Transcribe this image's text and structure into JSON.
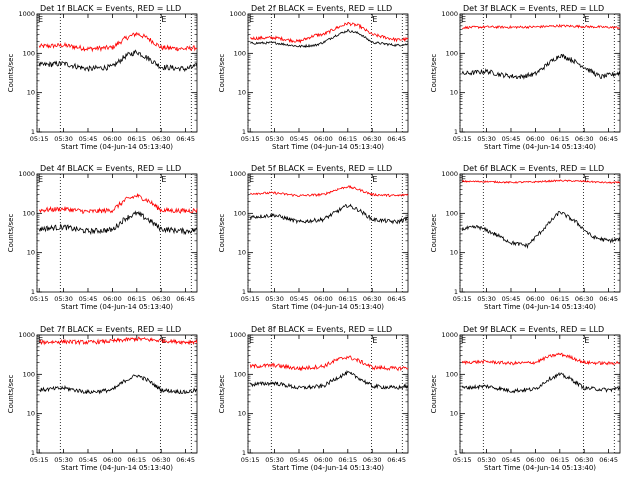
{
  "figure": {
    "xtick_labels": [
      "05:15",
      "05:30",
      "05:45",
      "06:00",
      "06:15",
      "06:30",
      "06:45"
    ],
    "ytick_labels": [
      "1",
      "10",
      "100",
      "1000"
    ],
    "xlabel": "Start Time (04-Jun-14 05:13:40)",
    "ylabel": "Counts/sec",
    "event_marker": "E",
    "colors": {
      "events": "#000000",
      "lld": "#ff0000",
      "axes": "#000000"
    }
  },
  "chart_data": [
    {
      "type": "line",
      "title": "Det 1f BLACK = Events, RED = LLD",
      "xlabel": "Start Time (04-Jun-14 05:13:40)",
      "ylabel": "Counts/sec",
      "ylim": [
        1,
        1000
      ],
      "yscale": "log",
      "xlim": [
        "05:13:40",
        "06:52:00"
      ],
      "event_lines": [
        "05:13:40",
        "05:28:00",
        "06:29:30",
        "06:48:30"
      ],
      "event_marks_at": [
        "05:13:40",
        "06:29:30"
      ],
      "series": [
        {
          "color": "#ff0000",
          "noise": 0.06,
          "x": [
            "05:15",
            "05:30",
            "05:45",
            "06:00",
            "06:08",
            "06:15",
            "06:22",
            "06:30",
            "06:45",
            "06:52"
          ],
          "y": [
            150,
            160,
            130,
            140,
            240,
            320,
            240,
            140,
            130,
            140
          ]
        },
        {
          "color": "#000000",
          "noise": 0.07,
          "x": [
            "05:15",
            "05:30",
            "05:45",
            "06:00",
            "06:08",
            "06:15",
            "06:22",
            "06:30",
            "06:45",
            "06:52"
          ],
          "y": [
            50,
            55,
            40,
            45,
            85,
            110,
            75,
            45,
            40,
            48
          ]
        }
      ]
    },
    {
      "type": "line",
      "title": "Det 2f BLACK = Events, RED = LLD",
      "xlabel": "Start Time (04-Jun-14 05:13:40)",
      "ylabel": "Counts/sec",
      "ylim": [
        1,
        1000
      ],
      "yscale": "log",
      "xlim": [
        "05:13:40",
        "06:52:00"
      ],
      "event_lines": [
        "05:13:40",
        "05:28:00",
        "06:29:30",
        "06:48:30"
      ],
      "event_marks_at": [
        "05:13:40",
        "06:29:30"
      ],
      "series": [
        {
          "color": "#ff0000",
          "noise": 0.04,
          "x": [
            "05:15",
            "05:30",
            "05:45",
            "05:55",
            "06:00",
            "06:08",
            "06:15",
            "06:22",
            "06:30",
            "06:45",
            "06:52"
          ],
          "y": [
            240,
            250,
            200,
            290,
            300,
            440,
            580,
            500,
            300,
            220,
            230
          ]
        },
        {
          "color": "#000000",
          "noise": 0.03,
          "x": [
            "05:15",
            "05:30",
            "05:45",
            "05:55",
            "06:00",
            "06:08",
            "06:15",
            "06:22",
            "06:30",
            "06:45",
            "06:52"
          ],
          "y": [
            180,
            185,
            150,
            160,
            190,
            290,
            380,
            320,
            190,
            160,
            170
          ]
        }
      ]
    },
    {
      "type": "line",
      "title": "Det 3f BLACK = Events, RED = LLD",
      "xlabel": "Start Time (04-Jun-14 05:13:40)",
      "ylabel": "Counts/sec",
      "ylim": [
        1,
        1000
      ],
      "yscale": "log",
      "xlim": [
        "05:13:40",
        "06:52:00"
      ],
      "event_lines": [
        "05:13:40",
        "05:28:00",
        "06:29:30",
        "06:48:30"
      ],
      "event_marks_at": [
        "05:13:40",
        "06:29:30"
      ],
      "series": [
        {
          "color": "#ff0000",
          "noise": 0.03,
          "x": [
            "05:15",
            "05:30",
            "05:45",
            "06:00",
            "06:15",
            "06:30",
            "06:45",
            "06:52"
          ],
          "y": [
            450,
            470,
            460,
            470,
            500,
            480,
            460,
            450
          ]
        },
        {
          "color": "#000000",
          "noise": 0.06,
          "x": [
            "05:15",
            "05:30",
            "05:40",
            "05:50",
            "06:00",
            "06:08",
            "06:15",
            "06:22",
            "06:30",
            "06:40",
            "06:52"
          ],
          "y": [
            30,
            35,
            28,
            25,
            30,
            55,
            90,
            70,
            45,
            25,
            32
          ]
        }
      ]
    },
    {
      "type": "line",
      "title": "Det 4f BLACK = Events, RED = LLD",
      "xlabel": "Start Time (04-Jun-14 05:13:40)",
      "ylabel": "Counts/sec",
      "ylim": [
        1,
        1000
      ],
      "yscale": "log",
      "xlim": [
        "05:13:40",
        "06:52:00"
      ],
      "event_lines": [
        "05:13:40",
        "05:28:00",
        "06:29:30",
        "06:48:30"
      ],
      "event_marks_at": [
        "05:13:40",
        "06:29:30"
      ],
      "series": [
        {
          "color": "#ff0000",
          "noise": 0.06,
          "x": [
            "05:15",
            "05:30",
            "05:45",
            "06:00",
            "06:08",
            "06:15",
            "06:22",
            "06:30",
            "06:45",
            "06:52"
          ],
          "y": [
            120,
            130,
            110,
            120,
            220,
            280,
            210,
            120,
            115,
            120
          ]
        },
        {
          "color": "#000000",
          "noise": 0.07,
          "x": [
            "05:15",
            "05:30",
            "05:45",
            "06:00",
            "06:08",
            "06:15",
            "06:22",
            "06:30",
            "06:45",
            "06:52"
          ],
          "y": [
            40,
            45,
            35,
            38,
            75,
            100,
            70,
            40,
            35,
            38
          ]
        }
      ]
    },
    {
      "type": "line",
      "title": "Det 5f BLACK = Events, RED = LLD",
      "xlabel": "Start Time (04-Jun-14 05:13:40)",
      "ylabel": "Counts/sec",
      "ylim": [
        1,
        1000
      ],
      "yscale": "log",
      "xlim": [
        "05:13:40",
        "06:52:00"
      ],
      "event_lines": [
        "05:13:40",
        "05:28:00",
        "06:29:30",
        "06:48:30"
      ],
      "event_marks_at": [
        "05:13:40",
        "06:29:30"
      ],
      "series": [
        {
          "color": "#ff0000",
          "noise": 0.03,
          "x": [
            "05:15",
            "05:30",
            "05:45",
            "06:00",
            "06:08",
            "06:15",
            "06:22",
            "06:30",
            "06:45",
            "06:52"
          ],
          "y": [
            320,
            330,
            280,
            300,
            400,
            480,
            400,
            300,
            280,
            300
          ]
        },
        {
          "color": "#000000",
          "noise": 0.05,
          "x": [
            "05:15",
            "05:30",
            "05:45",
            "06:00",
            "06:08",
            "06:15",
            "06:22",
            "06:30",
            "06:45",
            "06:52"
          ],
          "y": [
            80,
            90,
            60,
            70,
            110,
            160,
            120,
            70,
            60,
            75
          ]
        }
      ]
    },
    {
      "type": "line",
      "title": "Det 6f BLACK = Events, RED = LLD",
      "xlabel": "Start Time (04-Jun-14 05:13:40)",
      "ylabel": "Counts/sec",
      "ylim": [
        1,
        1000
      ],
      "yscale": "log",
      "xlim": [
        "05:13:40",
        "06:52:00"
      ],
      "event_lines": [
        "05:13:40",
        "05:28:00",
        "06:29:30",
        "06:48:30"
      ],
      "event_marks_at": [
        "05:13:40",
        "06:29:30"
      ],
      "series": [
        {
          "color": "#ff0000",
          "noise": 0.02,
          "x": [
            "05:15",
            "05:30",
            "05:45",
            "06:00",
            "06:15",
            "06:30",
            "06:45",
            "06:52"
          ],
          "y": [
            650,
            640,
            610,
            630,
            680,
            650,
            600,
            610
          ]
        },
        {
          "color": "#000000",
          "noise": 0.05,
          "x": [
            "05:15",
            "05:25",
            "05:35",
            "05:45",
            "05:55",
            "06:05",
            "06:15",
            "06:25",
            "06:35",
            "06:45",
            "06:52"
          ],
          "y": [
            40,
            45,
            30,
            18,
            15,
            40,
            110,
            60,
            25,
            20,
            22
          ]
        }
      ]
    },
    {
      "type": "line",
      "title": "Det 7f BLACK = Events, RED = LLD",
      "xlabel": "Start Time (04-Jun-14 05:13:40)",
      "ylabel": "Counts/sec",
      "ylim": [
        1,
        1000
      ],
      "yscale": "log",
      "xlim": [
        "05:13:40",
        "06:52:00"
      ],
      "event_lines": [
        "05:13:40",
        "05:28:00",
        "06:29:30",
        "06:48:30"
      ],
      "event_marks_at": [
        "05:13:40",
        "06:29:30"
      ],
      "series": [
        {
          "color": "#ff0000",
          "noise": 0.05,
          "x": [
            "05:15",
            "05:30",
            "05:45",
            "06:00",
            "06:15",
            "06:30",
            "06:45",
            "06:52"
          ],
          "y": [
            650,
            680,
            650,
            700,
            800,
            720,
            660,
            680
          ]
        },
        {
          "color": "#000000",
          "noise": 0.05,
          "x": [
            "05:15",
            "05:30",
            "05:45",
            "06:00",
            "06:08",
            "06:15",
            "06:22",
            "06:30",
            "06:45",
            "06:52"
          ],
          "y": [
            40,
            45,
            35,
            40,
            70,
            95,
            70,
            40,
            35,
            40
          ]
        }
      ]
    },
    {
      "type": "line",
      "title": "Det 8f BLACK = Events, RED = LLD",
      "xlabel": "Start Time (04-Jun-14 05:13:40)",
      "ylabel": "Counts/sec",
      "ylim": [
        1,
        1000
      ],
      "yscale": "log",
      "xlim": [
        "05:13:40",
        "06:52:00"
      ],
      "event_lines": [
        "05:13:40",
        "05:28:00",
        "06:29:30",
        "06:48:30"
      ],
      "event_marks_at": [
        "05:13:40",
        "06:29:30"
      ],
      "series": [
        {
          "color": "#ff0000",
          "noise": 0.05,
          "x": [
            "05:15",
            "05:30",
            "05:45",
            "06:00",
            "06:08",
            "06:15",
            "06:22",
            "06:30",
            "06:45",
            "06:52"
          ],
          "y": [
            160,
            170,
            140,
            160,
            230,
            280,
            220,
            150,
            140,
            150
          ]
        },
        {
          "color": "#000000",
          "noise": 0.05,
          "x": [
            "05:15",
            "05:30",
            "05:45",
            "06:00",
            "06:08",
            "06:15",
            "06:22",
            "06:30",
            "06:45",
            "06:52"
          ],
          "y": [
            55,
            60,
            45,
            50,
            80,
            110,
            80,
            50,
            45,
            50
          ]
        }
      ]
    },
    {
      "type": "line",
      "title": "Det 9f BLACK = Events, RED = LLD",
      "xlabel": "Start Time (04-Jun-14 05:13:40)",
      "ylabel": "Counts/sec",
      "ylim": [
        1,
        1000
      ],
      "yscale": "log",
      "xlim": [
        "05:13:40",
        "06:52:00"
      ],
      "event_lines": [
        "05:13:40",
        "05:28:00",
        "06:29:30",
        "06:48:30"
      ],
      "event_marks_at": [
        "05:13:40",
        "06:29:30"
      ],
      "series": [
        {
          "color": "#ff0000",
          "noise": 0.04,
          "x": [
            "05:15",
            "05:30",
            "05:45",
            "06:00",
            "06:08",
            "06:15",
            "06:22",
            "06:30",
            "06:45",
            "06:52"
          ],
          "y": [
            200,
            210,
            190,
            200,
            280,
            330,
            270,
            200,
            190,
            200
          ]
        },
        {
          "color": "#000000",
          "noise": 0.05,
          "x": [
            "05:15",
            "05:30",
            "05:45",
            "06:00",
            "06:08",
            "06:15",
            "06:22",
            "06:30",
            "06:45",
            "06:52"
          ],
          "y": [
            45,
            50,
            38,
            42,
            75,
            100,
            75,
            45,
            40,
            45
          ]
        }
      ]
    }
  ]
}
